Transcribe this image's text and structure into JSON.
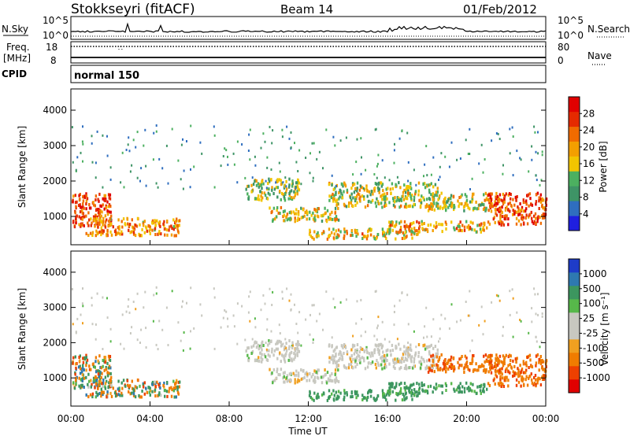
{
  "header": {
    "station": "Stokkseyri (fitACF)",
    "beam": "Beam 14",
    "date": "01/Feb/2012"
  },
  "noise_panel": {
    "left_label": "N.Sky",
    "right_label": "N.Search",
    "tick_top": "10^5",
    "tick_bottom": "10^0"
  },
  "freq_panel": {
    "label_line1": "Freq.",
    "label_line2": "[MHz]",
    "left_ticks": [
      "18",
      "8"
    ],
    "right_label": "Nave",
    "right_ticks": [
      "80",
      "0"
    ]
  },
  "cpid_panel": {
    "label": "CPID",
    "mode": "normal 150"
  },
  "colors": {
    "power_scale": [
      "#1f1fe0",
      "#2f6ebf",
      "#3e9466",
      "#4cb060",
      "#f2c500",
      "#f39f00",
      "#f06b00",
      "#e52a00",
      "#e00000"
    ],
    "velocity_scale": [
      "#1e3cc8",
      "#2e79b0",
      "#3c965f",
      "#57b84a",
      "#c8c8c0",
      "#c8c8c0",
      "#f0a020",
      "#f07c00",
      "#ee4000",
      "#e00000"
    ]
  },
  "chart_data": [
    {
      "type": "heatmap",
      "name": "power",
      "ylabel": "Slant Range [km]",
      "yticks": [
        "1000",
        "2000",
        "3000",
        "4000"
      ],
      "ylim": [
        200,
        4600
      ],
      "xlim": [
        "00:00",
        "24:00"
      ],
      "colorbar_label": "Power [dB]",
      "colorbar_ticks": [
        "4",
        "8",
        "12",
        "16",
        "20",
        "24",
        "28"
      ],
      "colorbar_range": [
        0,
        32
      ],
      "scatter_bands": [
        {
          "t0": 0.0,
          "t1": 2.0,
          "r0": 700,
          "r1": 1700,
          "p": 26
        },
        {
          "t0": 0.5,
          "t1": 5.5,
          "r0": 500,
          "r1": 1000,
          "p": 21
        },
        {
          "t0": 8.8,
          "t1": 11.5,
          "r0": 1500,
          "r1": 2100,
          "p": 14
        },
        {
          "t0": 10.0,
          "t1": 13.5,
          "r0": 900,
          "r1": 1300,
          "p": 17
        },
        {
          "t0": 12.0,
          "t1": 17.5,
          "r0": 400,
          "r1": 700,
          "p": 18
        },
        {
          "t0": 13.0,
          "t1": 18.5,
          "r0": 1300,
          "r1": 2000,
          "p": 15
        },
        {
          "t0": 16.0,
          "t1": 21.0,
          "r0": 600,
          "r1": 900,
          "p": 19
        },
        {
          "t0": 18.0,
          "t1": 21.5,
          "r0": 1200,
          "r1": 1700,
          "p": 16
        },
        {
          "t0": 21.0,
          "t1": 24.0,
          "r0": 800,
          "r1": 1700,
          "p": 25
        }
      ]
    },
    {
      "type": "heatmap",
      "name": "velocity",
      "ylabel": "Slant Range [km]",
      "yticks": [
        "1000",
        "2000",
        "3000",
        "4000"
      ],
      "ylim": [
        200,
        4600
      ],
      "xlim": [
        "00:00",
        "24:00"
      ],
      "xticks": [
        "00:00",
        "04:00",
        "08:00",
        "12:00",
        "16:00",
        "20:00",
        "00:00"
      ],
      "xlabel": "Time UT",
      "colorbar_label": "Velocity [m s⁻¹]",
      "colorbar_ticks": [
        "1000",
        "500",
        "100",
        "25",
        "-25",
        "-100",
        "-500",
        "-1000"
      ],
      "colorbar_range": [
        -1000,
        1000
      ]
    }
  ]
}
